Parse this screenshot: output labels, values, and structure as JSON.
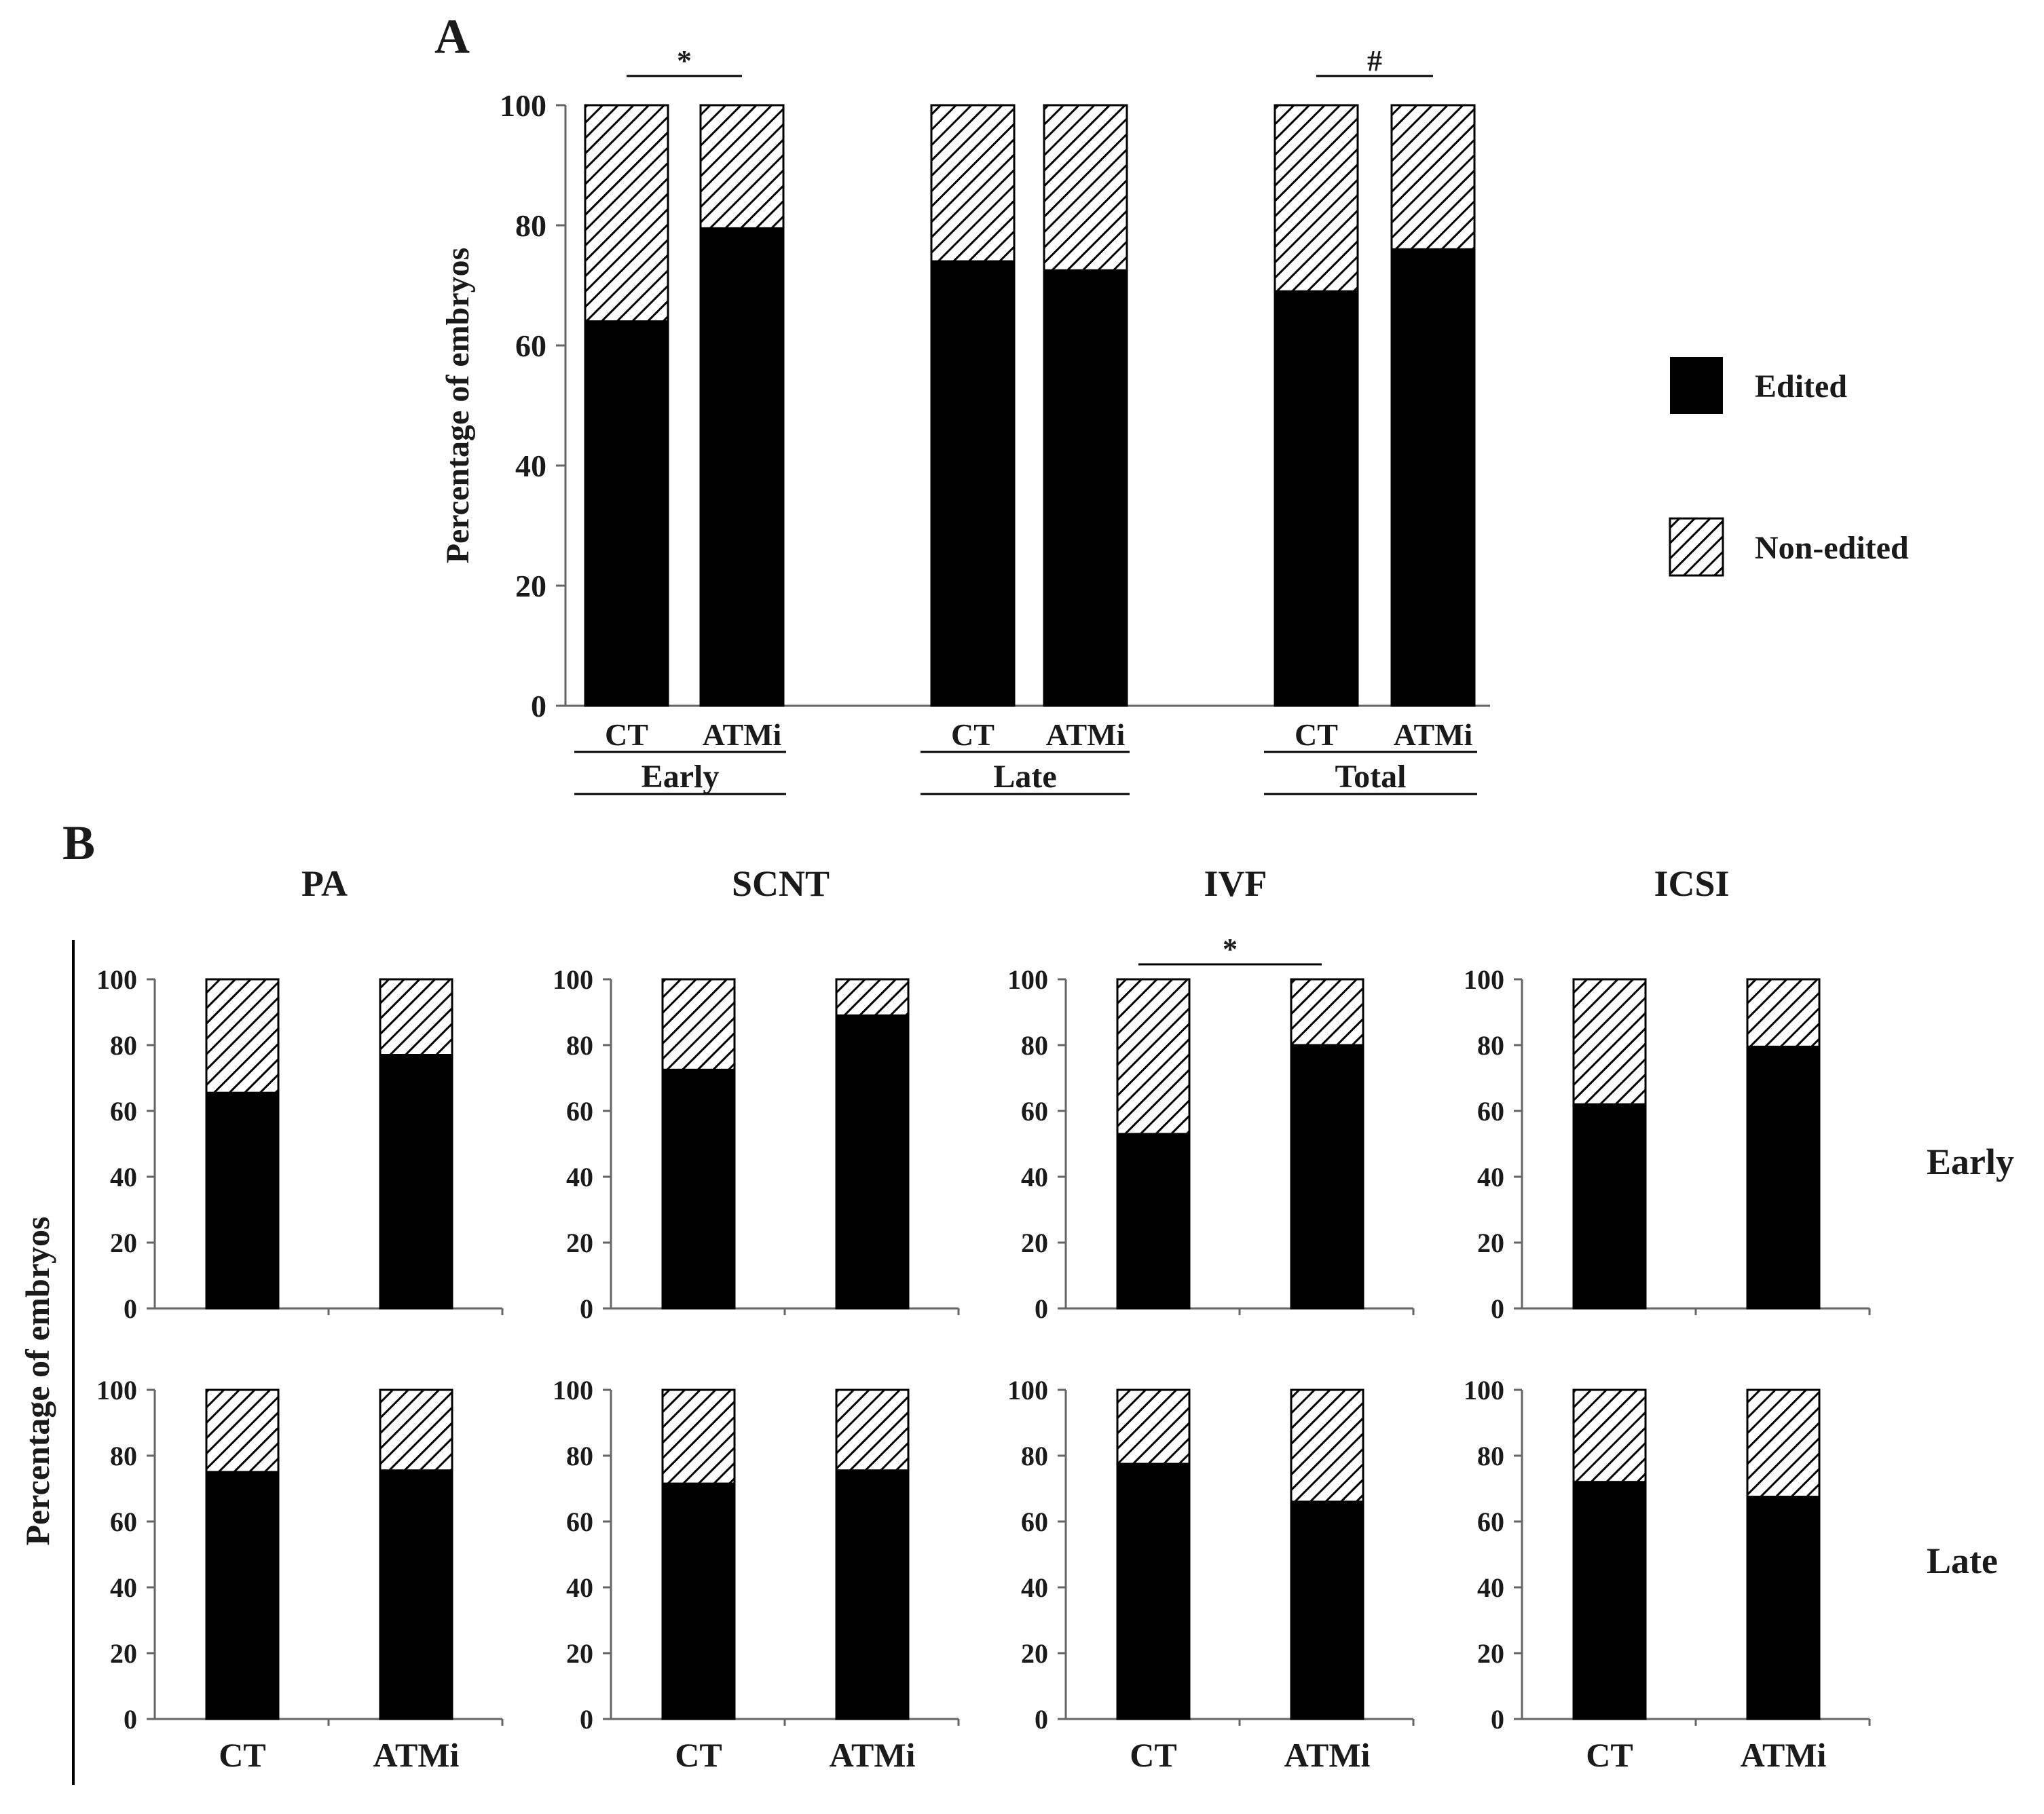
{
  "panel_labels": {
    "a": "A",
    "b": "B"
  },
  "legend": {
    "edited": "Edited",
    "non_edited": "Non-edited"
  },
  "colors": {
    "edited": "#000000",
    "non_edited_hatch": "#000000",
    "background": "#ffffff"
  },
  "chart_data": [
    {
      "id": "A",
      "type": "bar",
      "stacked": true,
      "ylabel": "Percentage of embryos",
      "ylim": [
        0,
        100
      ],
      "yticks": [
        0,
        20,
        40,
        60,
        80,
        100
      ],
      "groups": [
        {
          "name": "Early",
          "bars": [
            {
              "label": "CT",
              "edited": 64,
              "non_edited": 36
            },
            {
              "label": "ATMi",
              "edited": 79.5,
              "non_edited": 20.5
            }
          ],
          "significance": "*"
        },
        {
          "name": "Late",
          "bars": [
            {
              "label": "CT",
              "edited": 74,
              "non_edited": 26
            },
            {
              "label": "ATMi",
              "edited": 72.5,
              "non_edited": 27.5
            }
          ],
          "significance": ""
        },
        {
          "name": "Total",
          "bars": [
            {
              "label": "CT",
              "edited": 69,
              "non_edited": 31
            },
            {
              "label": "ATMi",
              "edited": 76,
              "non_edited": 24
            }
          ],
          "significance": "#"
        }
      ],
      "legend_position": "right"
    },
    {
      "id": "B",
      "type": "bar",
      "stacked": true,
      "ylabel": "Percentage of embryos",
      "ylim": [
        0,
        100
      ],
      "yticks": [
        0,
        20,
        40,
        60,
        80,
        100
      ],
      "columns": [
        "PA",
        "SCNT",
        "IVF",
        "ICSI"
      ],
      "rows": [
        "Early",
        "Late"
      ],
      "categories": [
        "CT",
        "ATMi"
      ],
      "panels": [
        {
          "column": "PA",
          "row": "Early",
          "edited": [
            65.5,
            77
          ],
          "significance": ""
        },
        {
          "column": "SCNT",
          "row": "Early",
          "edited": [
            72.5,
            89
          ],
          "significance": ""
        },
        {
          "column": "IVF",
          "row": "Early",
          "edited": [
            53,
            80
          ],
          "significance": "*"
        },
        {
          "column": "ICSI",
          "row": "Early",
          "edited": [
            62,
            79.5
          ],
          "significance": ""
        },
        {
          "column": "PA",
          "row": "Late",
          "edited": [
            75,
            75.5
          ],
          "significance": ""
        },
        {
          "column": "SCNT",
          "row": "Late",
          "edited": [
            71.5,
            75.5
          ],
          "significance": ""
        },
        {
          "column": "IVF",
          "row": "Late",
          "edited": [
            77.5,
            66
          ],
          "significance": ""
        },
        {
          "column": "ICSI",
          "row": "Late",
          "edited": [
            72,
            67.5
          ],
          "significance": ""
        }
      ]
    }
  ]
}
